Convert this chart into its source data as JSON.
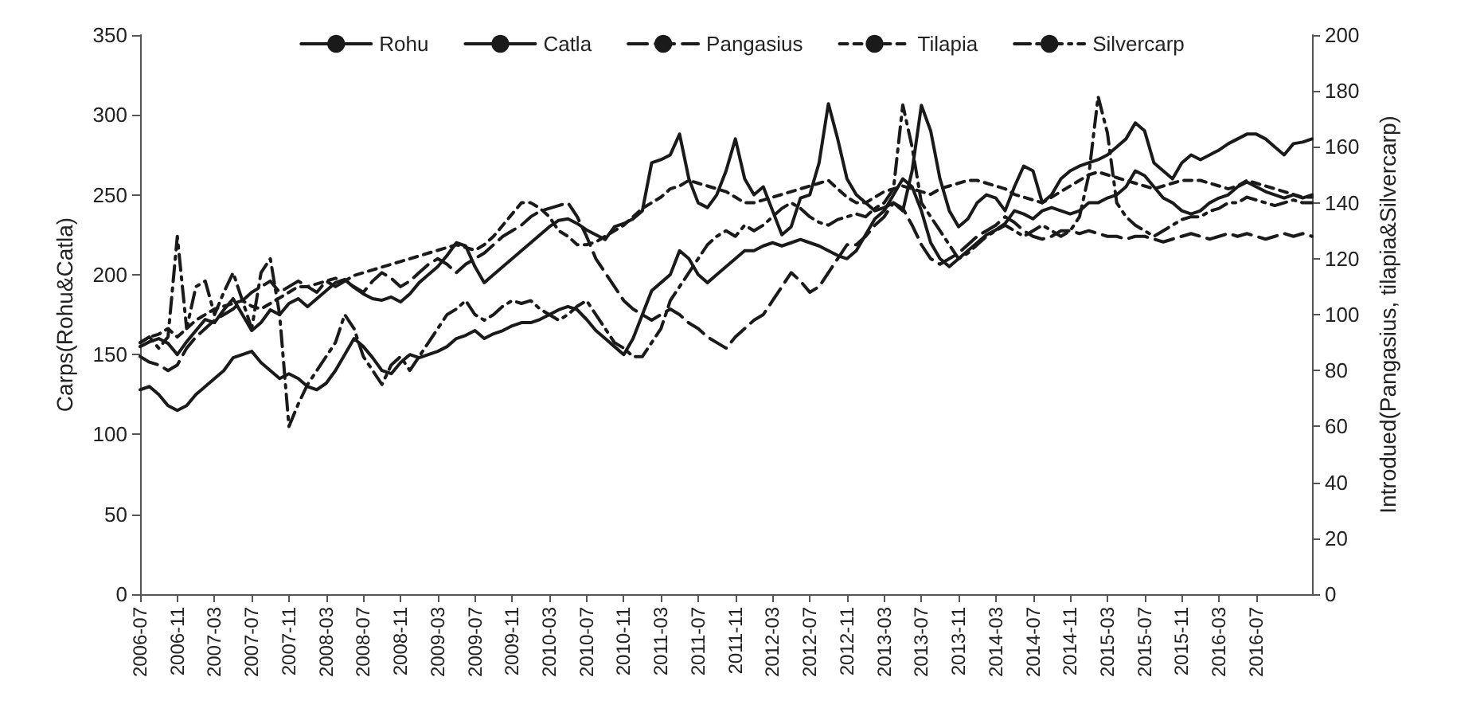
{
  "chart_data": {
    "type": "line",
    "ylabel": "Carps(Rohu&Catla)",
    "y2label": "Introdued(Pangasius, tilapia&Silvercarp)",
    "categories": [
      "2006-07",
      null,
      null,
      null,
      "2006-11",
      null,
      null,
      null,
      "2007-03",
      null,
      null,
      null,
      "2007-07",
      null,
      null,
      null,
      "2007-11",
      null,
      null,
      null,
      "2008-03",
      null,
      null,
      null,
      "2008-07",
      null,
      null,
      null,
      "2008-11",
      null,
      null,
      null,
      "2009-03",
      null,
      null,
      null,
      "2009-07",
      null,
      null,
      null,
      "2009-11",
      null,
      null,
      null,
      "2010-03",
      null,
      null,
      null,
      "2010-07",
      null,
      null,
      null,
      "2010-11",
      null,
      null,
      null,
      "2011-03",
      null,
      null,
      null,
      "2011-07",
      null,
      null,
      null,
      "2011-11",
      null,
      null,
      null,
      "2012-03",
      null,
      null,
      null,
      "2012-07",
      null,
      null,
      null,
      "2012-11",
      null,
      null,
      null,
      "2013-03",
      null,
      null,
      null,
      "2013-07",
      null,
      null,
      null,
      "2013-11",
      null,
      null,
      null,
      "2014-03",
      null,
      null,
      null,
      "2014-07",
      null,
      null,
      null,
      "2014-11",
      null,
      null,
      null,
      "2015-03",
      null,
      null,
      null,
      "2015-07",
      null,
      null,
      null,
      "2015-11",
      null,
      null,
      null,
      "2016-03",
      null,
      null,
      null,
      "2016-07",
      null,
      null,
      null,
      null,
      null,
      null
    ],
    "series": [
      {
        "name": "Rohu",
        "color": "#1a1a1a",
        "line_style": "solid",
        "values": [
          155,
          158,
          160,
          157,
          150,
          158,
          165,
          172,
          170,
          178,
          185,
          175,
          165,
          170,
          178,
          175,
          182,
          185,
          180,
          185,
          190,
          195,
          197,
          192,
          188,
          185,
          184,
          186,
          183,
          188,
          195,
          200,
          205,
          212,
          220,
          218,
          205,
          195,
          200,
          205,
          210,
          215,
          220,
          225,
          230,
          234,
          235,
          232,
          228,
          225,
          222,
          230,
          232,
          235,
          240,
          270,
          272,
          275,
          288,
          260,
          245,
          242,
          250,
          265,
          285,
          260,
          250,
          255,
          240,
          225,
          230,
          248,
          250,
          270,
          307,
          285,
          260,
          250,
          245,
          240,
          242,
          245,
          240,
          265,
          306,
          290,
          260,
          240,
          230,
          235,
          245,
          250,
          248,
          240,
          255,
          268,
          265,
          245,
          250,
          260,
          265,
          268,
          270,
          272,
          275,
          280,
          285,
          295,
          290,
          270,
          265,
          260,
          270,
          275,
          272,
          275,
          278,
          282,
          285,
          288,
          288,
          285,
          280,
          275,
          282,
          283,
          285
        ]
      },
      {
        "name": "Catla",
        "color": "#1a1a1a",
        "line_style": "solid",
        "values": [
          128,
          130,
          125,
          118,
          115,
          118,
          125,
          130,
          135,
          140,
          148,
          150,
          152,
          145,
          140,
          135,
          138,
          135,
          130,
          128,
          132,
          140,
          150,
          160,
          155,
          148,
          140,
          138,
          145,
          150,
          148,
          150,
          152,
          155,
          160,
          162,
          165,
          160,
          163,
          165,
          168,
          170,
          170,
          172,
          175,
          178,
          180,
          178,
          172,
          165,
          160,
          155,
          150,
          160,
          175,
          190,
          195,
          200,
          215,
          210,
          200,
          195,
          200,
          205,
          210,
          215,
          215,
          218,
          220,
          218,
          220,
          222,
          220,
          218,
          215,
          212,
          210,
          215,
          225,
          235,
          240,
          250,
          260,
          255,
          240,
          220,
          210,
          205,
          210,
          215,
          220,
          225,
          228,
          232,
          240,
          238,
          235,
          240,
          242,
          240,
          238,
          240,
          245,
          245,
          248,
          250,
          255,
          265,
          262,
          255,
          248,
          245,
          240,
          238,
          240,
          245,
          248,
          250,
          255,
          258,
          255,
          252,
          250,
          248,
          250,
          248,
          250
        ]
      },
      {
        "name": "Pangasius",
        "color": "#1a1a1a",
        "line_style": "dashed",
        "axis": "y2",
        "values": [
          85,
          83,
          82,
          80,
          82,
          88,
          92,
          95,
          98,
          100,
          102,
          105,
          108,
          110,
          112,
          108,
          110,
          112,
          110,
          108,
          112,
          110,
          112,
          110,
          108,
          112,
          115,
          113,
          110,
          112,
          115,
          118,
          120,
          118,
          115,
          118,
          120,
          122,
          125,
          128,
          130,
          132,
          135,
          137,
          138,
          139,
          140,
          135,
          128,
          120,
          115,
          110,
          105,
          102,
          100,
          98,
          100,
          102,
          100,
          97,
          95,
          92,
          90,
          88,
          92,
          95,
          98,
          100,
          105,
          110,
          115,
          112,
          108,
          110,
          115,
          120,
          125,
          125,
          128,
          132,
          135,
          140,
          138,
          132,
          125,
          120,
          118,
          120,
          122,
          125,
          128,
          130,
          132,
          135,
          133,
          130,
          128,
          127,
          128,
          130,
          130,
          129,
          130,
          129,
          128,
          128,
          127,
          128,
          128,
          127,
          126,
          127,
          128,
          129,
          128,
          127,
          128,
          129,
          128,
          129,
          128,
          127,
          128,
          129,
          128,
          129,
          128
        ]
      },
      {
        "name": "Tilapia",
        "color": "#1a1a1a",
        "line_style": "dotted",
        "axis": "y2",
        "values": [
          90,
          92,
          93,
          95,
          92,
          95,
          98,
          100,
          102,
          103,
          104,
          105,
          103,
          102,
          104,
          106,
          108,
          110,
          110,
          111,
          112,
          113,
          112,
          114,
          115,
          116,
          117,
          118,
          119,
          120,
          121,
          122,
          123,
          124,
          125,
          124,
          123,
          125,
          128,
          132,
          136,
          140,
          140,
          138,
          135,
          130,
          128,
          125,
          125,
          126,
          128,
          130,
          132,
          135,
          138,
          140,
          142,
          145,
          146,
          148,
          147,
          146,
          145,
          144,
          142,
          140,
          140,
          141,
          142,
          143,
          144,
          145,
          146,
          147,
          148,
          145,
          142,
          140,
          140,
          142,
          144,
          145,
          146,
          145,
          144,
          143,
          145,
          146,
          147,
          148,
          148,
          147,
          146,
          145,
          143,
          142,
          141,
          140,
          142,
          144,
          146,
          148,
          150,
          151,
          150,
          149,
          148,
          147,
          146,
          145,
          146,
          147,
          148,
          148,
          148,
          147,
          146,
          145,
          146,
          148,
          147,
          146,
          145,
          144,
          143,
          142,
          142
        ]
      },
      {
        "name": "Silvercarp",
        "color": "#1a1a1a",
        "line_style": "dashdot",
        "axis": "y2",
        "values": [
          90,
          92,
          88,
          92,
          128,
          95,
          110,
          112,
          100,
          108,
          115,
          105,
          95,
          115,
          120,
          100,
          60,
          68,
          75,
          80,
          85,
          90,
          100,
          95,
          85,
          80,
          75,
          82,
          85,
          80,
          85,
          90,
          95,
          100,
          102,
          105,
          100,
          98,
          100,
          103,
          105,
          104,
          105,
          102,
          100,
          98,
          100,
          103,
          105,
          100,
          95,
          90,
          88,
          85,
          85,
          90,
          95,
          105,
          110,
          115,
          120,
          125,
          128,
          130,
          128,
          132,
          130,
          132,
          135,
          138,
          140,
          138,
          135,
          133,
          132,
          134,
          135,
          136,
          135,
          138,
          140,
          145,
          175,
          160,
          140,
          135,
          130,
          125,
          120,
          122,
          125,
          128,
          130,
          132,
          130,
          128,
          130,
          132,
          130,
          128,
          130,
          135,
          150,
          178,
          165,
          140,
          135,
          132,
          130,
          128,
          130,
          132,
          134,
          135,
          135,
          137,
          138,
          140,
          140,
          142,
          141,
          140,
          139,
          140,
          141,
          140,
          140
        ]
      }
    ],
    "ylim": [
      0,
      350
    ],
    "yticks": [
      0,
      50,
      100,
      150,
      200,
      250,
      300,
      350
    ],
    "y2lim": [
      0,
      200
    ],
    "y2ticks": [
      0,
      20,
      40,
      60,
      80,
      100,
      120,
      140,
      160,
      180,
      200
    ],
    "legend": "top",
    "grid": false,
    "marker": "none"
  }
}
